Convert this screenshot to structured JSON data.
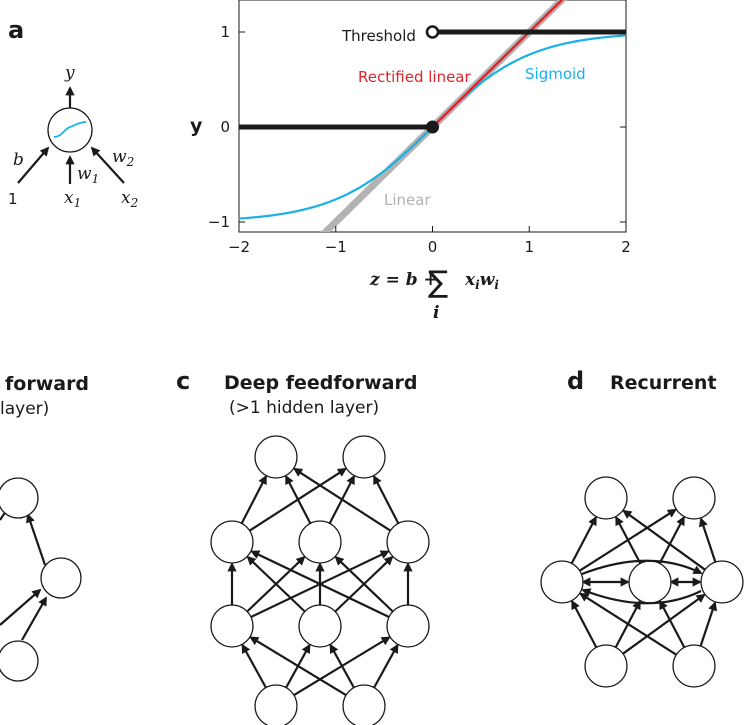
{
  "panel_a": {
    "letter": "a",
    "neuron": {
      "output_label": "y",
      "bias_label": "b",
      "bias_input_label": "1",
      "w1_label": "w",
      "w1_sub": "1",
      "w2_label": "w",
      "w2_sub": "2",
      "x1_label": "x",
      "x1_sub": "1",
      "x2_label": "x",
      "x2_sub": "2"
    },
    "plot": {
      "ylabel": "y",
      "formula": {
        "left": "z = b +",
        "sum": "∑",
        "index": "i",
        "right": "x",
        "right_sub1": "i",
        "right_mid": "w",
        "right_sub2": "i"
      }
    }
  },
  "colors": {
    "threshold": "#1a1a1a",
    "rectified_linear": "#e0242b",
    "sigmoid": "#1ab0e8",
    "linear": "#b3b3b3",
    "neuron_curve": "#1ab0e8"
  },
  "chart_data": {
    "type": "line",
    "xlim": [
      -2,
      2
    ],
    "ylim": [
      -1.05,
      1.1
    ],
    "x_ticks": [
      "−2",
      "−1",
      "0",
      "1",
      "2"
    ],
    "y_ticks": [
      "−1",
      "0",
      "1"
    ],
    "grid": false,
    "series": [
      {
        "name": "Linear",
        "function": "y = x",
        "x": [
          -2,
          2
        ],
        "color_key": "linear"
      },
      {
        "name": "Sigmoid",
        "function": "y = tanh(x)",
        "x": [
          -2,
          2
        ],
        "color_key": "sigmoid"
      },
      {
        "name": "Rectified linear",
        "function": "y = max(0, x)",
        "x": [
          -2,
          2
        ],
        "color_key": "rectified_linear"
      },
      {
        "name": "Threshold",
        "function": "y = 0 for x < 0, 1 for x >= 0",
        "x": [
          -2,
          2
        ],
        "color_key": "threshold"
      }
    ]
  },
  "panel_b": {
    "title": "forward",
    "subtitle": "layer)"
  },
  "panel_c": {
    "letter": "c",
    "title": "Deep feedforward",
    "subtitle": "(>1 hidden layer)"
  },
  "panel_d": {
    "letter": "d",
    "title": "Recurrent"
  }
}
